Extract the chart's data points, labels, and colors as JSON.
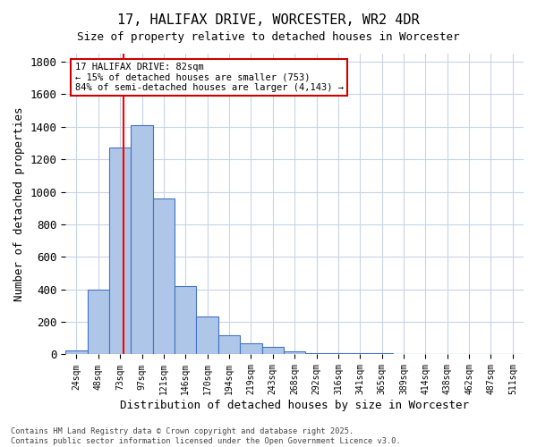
{
  "title_line1": "17, HALIFAX DRIVE, WORCESTER, WR2 4DR",
  "title_line2": "Size of property relative to detached houses in Worcester",
  "xlabel": "Distribution of detached houses by size in Worcester",
  "ylabel": "Number of detached properties",
  "bar_values": [
    25,
    400,
    1270,
    1410,
    960,
    420,
    235,
    120,
    70,
    45,
    20,
    10,
    10,
    10,
    10,
    5,
    5,
    5,
    5,
    3,
    2
  ],
  "bin_labels": [
    "24sqm",
    "48sqm",
    "73sqm",
    "97sqm",
    "121sqm",
    "146sqm",
    "170sqm",
    "194sqm",
    "219sqm",
    "243sqm",
    "268sqm",
    "292sqm",
    "316sqm",
    "341sqm",
    "365sqm",
    "389sqm",
    "414sqm",
    "438sqm",
    "462sqm",
    "487sqm",
    "511sqm"
  ],
  "bar_color": "#aec6e8",
  "bar_edge_color": "#4472c4",
  "background_color": "#ffffff",
  "grid_color": "#c8d4e8",
  "red_line_x": 2.15,
  "annotation_text": "17 HALIFAX DRIVE: 82sqm\n← 15% of detached houses are smaller (753)\n84% of semi-detached houses are larger (4,143) →",
  "annotation_box_color": "#ffffff",
  "annotation_box_edge": "#cc0000",
  "footer_text": "Contains HM Land Registry data © Crown copyright and database right 2025.\nContains public sector information licensed under the Open Government Licence v3.0.",
  "ylim": [
    0,
    1850
  ],
  "yticks": [
    0,
    200,
    400,
    600,
    800,
    1000,
    1200,
    1400,
    1600,
    1800
  ]
}
